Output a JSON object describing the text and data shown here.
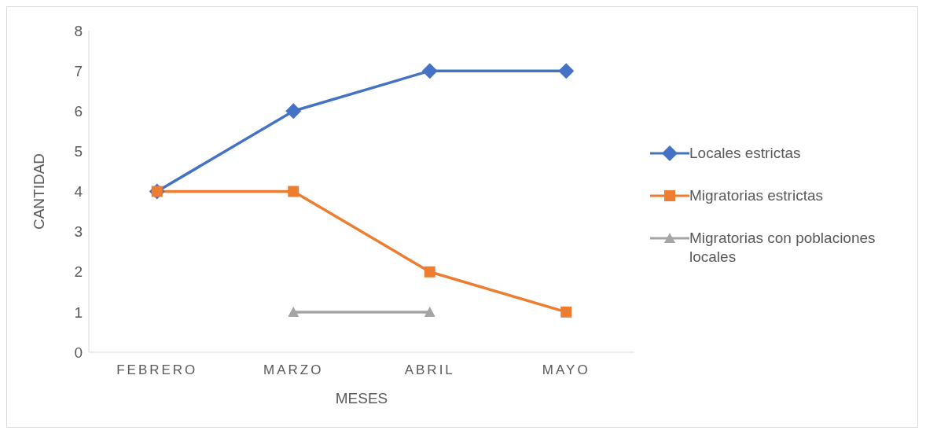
{
  "chart_data": {
    "type": "line",
    "xlabel": "MESES",
    "ylabel": "CANTIDAD",
    "categories": [
      "FEBRERO",
      "MARZO",
      "ABRIL",
      "MAYO"
    ],
    "series": [
      {
        "name": "Locales estrictas",
        "color": "#4472c4",
        "marker": "diamond",
        "values": [
          4,
          6,
          7,
          7
        ]
      },
      {
        "name": "Migratorias estrictas",
        "color": "#ed7d31",
        "marker": "square",
        "values": [
          4,
          4,
          2,
          1
        ]
      },
      {
        "name": "Migratorias con poblaciones locales",
        "color": "#a5a5a5",
        "marker": "triangle",
        "values": [
          null,
          1,
          1,
          null
        ]
      }
    ],
    "ylim": [
      0,
      8
    ],
    "yticks": [
      0,
      1,
      2,
      3,
      4,
      5,
      6,
      7,
      8
    ],
    "grid": false,
    "legend": "right",
    "line_style": "solid"
  }
}
